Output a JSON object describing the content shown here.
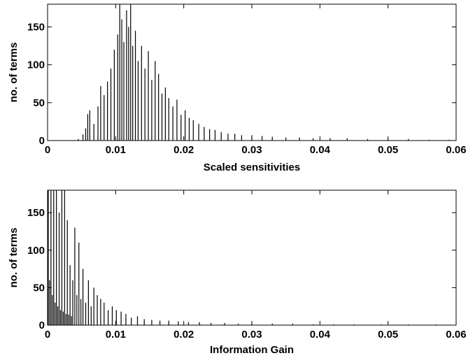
{
  "chart_data": [
    {
      "type": "bar",
      "xlabel": "Scaled sensitivities",
      "ylabel": "no. of terms",
      "xlim": [
        0,
        0.06
      ],
      "ylim": [
        0,
        180
      ],
      "xticks": [
        0,
        0.01,
        0.02,
        0.03,
        0.04,
        0.05,
        0.06
      ],
      "xtick_labels": [
        "0",
        "0.01",
        "0.02",
        "0.03",
        "0.04",
        "0.05",
        "0.06"
      ],
      "yticks": [
        0,
        50,
        100,
        150
      ],
      "ytick_labels": [
        "0",
        "50",
        "100",
        "150"
      ],
      "grid": false,
      "legend": "none",
      "bar_color": "#000000",
      "bin_width": 0.00012,
      "x": [
        0.0045,
        0.0052,
        0.0056,
        0.0059,
        0.0062,
        0.0068,
        0.0074,
        0.0078,
        0.0083,
        0.0088,
        0.0093,
        0.0098,
        0.0103,
        0.0106,
        0.0109,
        0.0112,
        0.0116,
        0.0119,
        0.0122,
        0.0125,
        0.0129,
        0.0133,
        0.0138,
        0.0143,
        0.0148,
        0.0153,
        0.0158,
        0.0163,
        0.0168,
        0.0173,
        0.0178,
        0.0184,
        0.019,
        0.0196,
        0.0202,
        0.0208,
        0.0214,
        0.0222,
        0.023,
        0.0238,
        0.0246,
        0.0255,
        0.0265,
        0.0275,
        0.0285,
        0.03,
        0.0315,
        0.033,
        0.035,
        0.037,
        0.039,
        0.0415,
        0.044,
        0.047,
        0.05,
        0.053,
        0.056,
        0.059
      ],
      "values": [
        2,
        8,
        16,
        35,
        40,
        22,
        45,
        72,
        60,
        78,
        95,
        120,
        140,
        185,
        160,
        130,
        172,
        150,
        185,
        125,
        145,
        105,
        125,
        95,
        118,
        80,
        105,
        88,
        62,
        70,
        56,
        45,
        54,
        34,
        40,
        30,
        27,
        22,
        18,
        15,
        14,
        11,
        9,
        9,
        7,
        7,
        6,
        5,
        4,
        4,
        3,
        3,
        3,
        2,
        2,
        2,
        1,
        1
      ]
    },
    {
      "type": "bar",
      "xlabel": "Information Gain",
      "ylabel": "no. of terms",
      "xlim": [
        0,
        0.06
      ],
      "ylim": [
        0,
        180
      ],
      "xticks": [
        0,
        0.01,
        0.02,
        0.03,
        0.04,
        0.05,
        0.06
      ],
      "xtick_labels": [
        "0",
        "0.01",
        "0.02",
        "0.03",
        "0.04",
        "0.05",
        "0.06"
      ],
      "yticks": [
        0,
        50,
        100,
        150
      ],
      "ytick_labels": [
        "0",
        "50",
        "100",
        "150"
      ],
      "grid": false,
      "legend": "none",
      "bar_color": "#000000",
      "bin_width": 0.00012,
      "x": [
        0.0001,
        0.0003,
        0.0005,
        0.0007,
        0.0009,
        0.0011,
        0.0013,
        0.0015,
        0.0017,
        0.0019,
        0.0021,
        0.0023,
        0.0025,
        0.0027,
        0.0029,
        0.0031,
        0.0033,
        0.0035,
        0.0037,
        0.004,
        0.0043,
        0.0046,
        0.0049,
        0.0052,
        0.0056,
        0.006,
        0.0064,
        0.0068,
        0.0073,
        0.0078,
        0.0083,
        0.0089,
        0.0095,
        0.0101,
        0.0108,
        0.0115,
        0.0123,
        0.0132,
        0.0142,
        0.0153,
        0.0165,
        0.0178,
        0.0192,
        0.0207,
        0.0223,
        0.024,
        0.026,
        0.028,
        0.03,
        0.033,
        0.036,
        0.039,
        0.042,
        0.045,
        0.049,
        0.053,
        0.057
      ],
      "values": [
        185,
        60,
        185,
        40,
        185,
        30,
        185,
        25,
        150,
        20,
        185,
        18,
        185,
        15,
        140,
        14,
        80,
        12,
        60,
        130,
        40,
        110,
        35,
        75,
        30,
        60,
        25,
        50,
        40,
        35,
        30,
        20,
        25,
        20,
        18,
        15,
        10,
        12,
        8,
        7,
        6,
        6,
        5,
        4,
        4,
        3,
        3,
        2,
        2,
        2,
        2,
        1,
        1,
        1,
        1,
        1,
        1
      ]
    }
  ]
}
